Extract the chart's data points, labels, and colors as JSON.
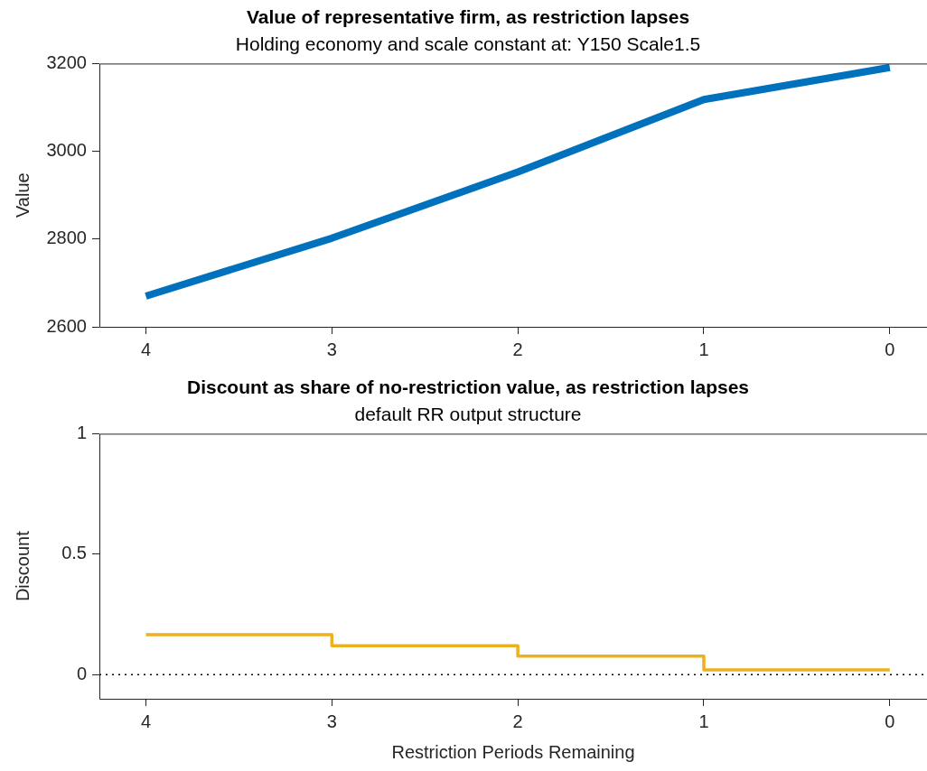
{
  "chart_data": [
    {
      "type": "line",
      "title": "Value of representative firm, as restriction lapses",
      "subtitle": "Holding economy and scale constant at: Y150 Scale1.5",
      "ylabel": "Value",
      "x": [
        4,
        3,
        2,
        1,
        0
      ],
      "series": [
        {
          "color": "#0072bd",
          "values": [
            2670,
            2802,
            2953,
            3118,
            3191
          ]
        }
      ],
      "xlim": [
        4.25,
        -0.2
      ],
      "xticks": [
        4,
        3,
        2,
        1,
        0
      ],
      "ylim": [
        2600,
        3200
      ],
      "yticks": [
        2600,
        2800,
        3000,
        3200
      ],
      "grid": false,
      "legend": false,
      "marker": "none",
      "line_style": "solid"
    },
    {
      "type": "step",
      "title": "Discount as share of no-restriction value, as restriction lapses",
      "subtitle": "default RR output structure",
      "xlabel": "Restriction Periods Remaining",
      "ylabel": "Discount",
      "x": [
        4,
        3,
        2,
        1,
        0
      ],
      "series": [
        {
          "color": "#edb120",
          "values": [
            0.166,
            0.12,
            0.077,
            0.02,
            0.02
          ]
        }
      ],
      "xlim": [
        4.25,
        -0.2
      ],
      "xticks": [
        4,
        3,
        2,
        1,
        0
      ],
      "ylim": [
        -0.1,
        1
      ],
      "yticks": [
        0,
        0.5,
        1
      ],
      "grid": false,
      "legend": false,
      "marker": "none",
      "line_style": "solid",
      "ref_lines": [
        {
          "axis": "y",
          "value": 0,
          "color": "#000000",
          "line_style": "dotted"
        }
      ]
    }
  ]
}
